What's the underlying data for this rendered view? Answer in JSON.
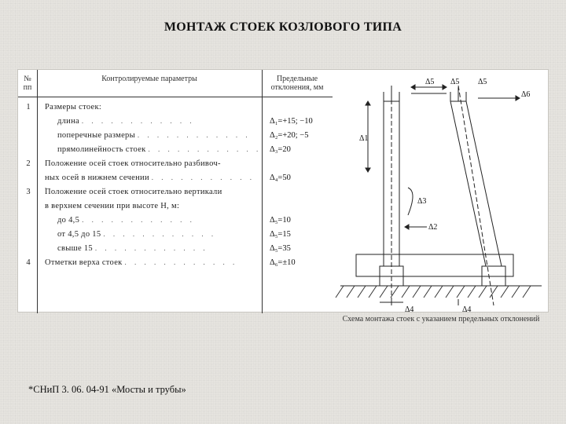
{
  "title": "МОНТАЖ СТОЕК КОЗЛОВОГО ТИПА",
  "footnote": "*СНиП 3. 06. 04-91 «Мосты и трубы»",
  "table": {
    "headers": {
      "num": "№ пп",
      "param": "Контролируемые параметры",
      "dev": "Предельные отклонения, мм"
    },
    "rows": [
      {
        "n": "1",
        "label": "Размеры стоек:",
        "dev": ""
      },
      {
        "n": "",
        "label": "длина",
        "dev": "Δ₁=+15; −10",
        "dots": true,
        "indent": true
      },
      {
        "n": "",
        "label": "поперечные размеры",
        "dev": "Δ₂=+20; −5",
        "dots": true,
        "indent": true
      },
      {
        "n": "",
        "label": "прямолинейность стоек",
        "dev": "Δ₃=20",
        "dots": true,
        "indent": true
      },
      {
        "n": "2",
        "label": "Положение осей стоек относительно разбивоч-",
        "dev": ""
      },
      {
        "n": "",
        "label": "ных осей в нижнем сечении",
        "dev": "Δ₄=50",
        "dots": true
      },
      {
        "n": "3",
        "label": "Положение осей стоек относительно вертикали",
        "dev": ""
      },
      {
        "n": "",
        "label": "в верхнем сечении при высоте Н, м:",
        "dev": ""
      },
      {
        "n": "",
        "label": "до 4,5",
        "dev": "Δ₅=10",
        "dots": true,
        "indent": true
      },
      {
        "n": "",
        "label": "от 4,5 до 15",
        "dev": "Δ₅=15",
        "dots": true,
        "indent": true
      },
      {
        "n": "",
        "label": "свыше 15",
        "dev": "Δ₅=35",
        "dots": true,
        "indent": true
      },
      {
        "n": "4",
        "label": "Отметки верха стоек",
        "dev": "Δ₆=±10",
        "dots": true
      }
    ],
    "row_top_start": 42,
    "row_step": 18
  },
  "diagram": {
    "caption": "Схема монтажа стоек с указанием предельных отклонений",
    "colors": {
      "stroke": "#222",
      "hatch": "#333",
      "bg": "#ffffff"
    },
    "labels": {
      "d1": "Δ1",
      "d2": "Δ2",
      "d3": "Δ3",
      "d4": "Δ4",
      "d5a": "Δ5",
      "d5b": "Δ5",
      "d5c": "Δ5",
      "d6": "Δ6"
    }
  }
}
